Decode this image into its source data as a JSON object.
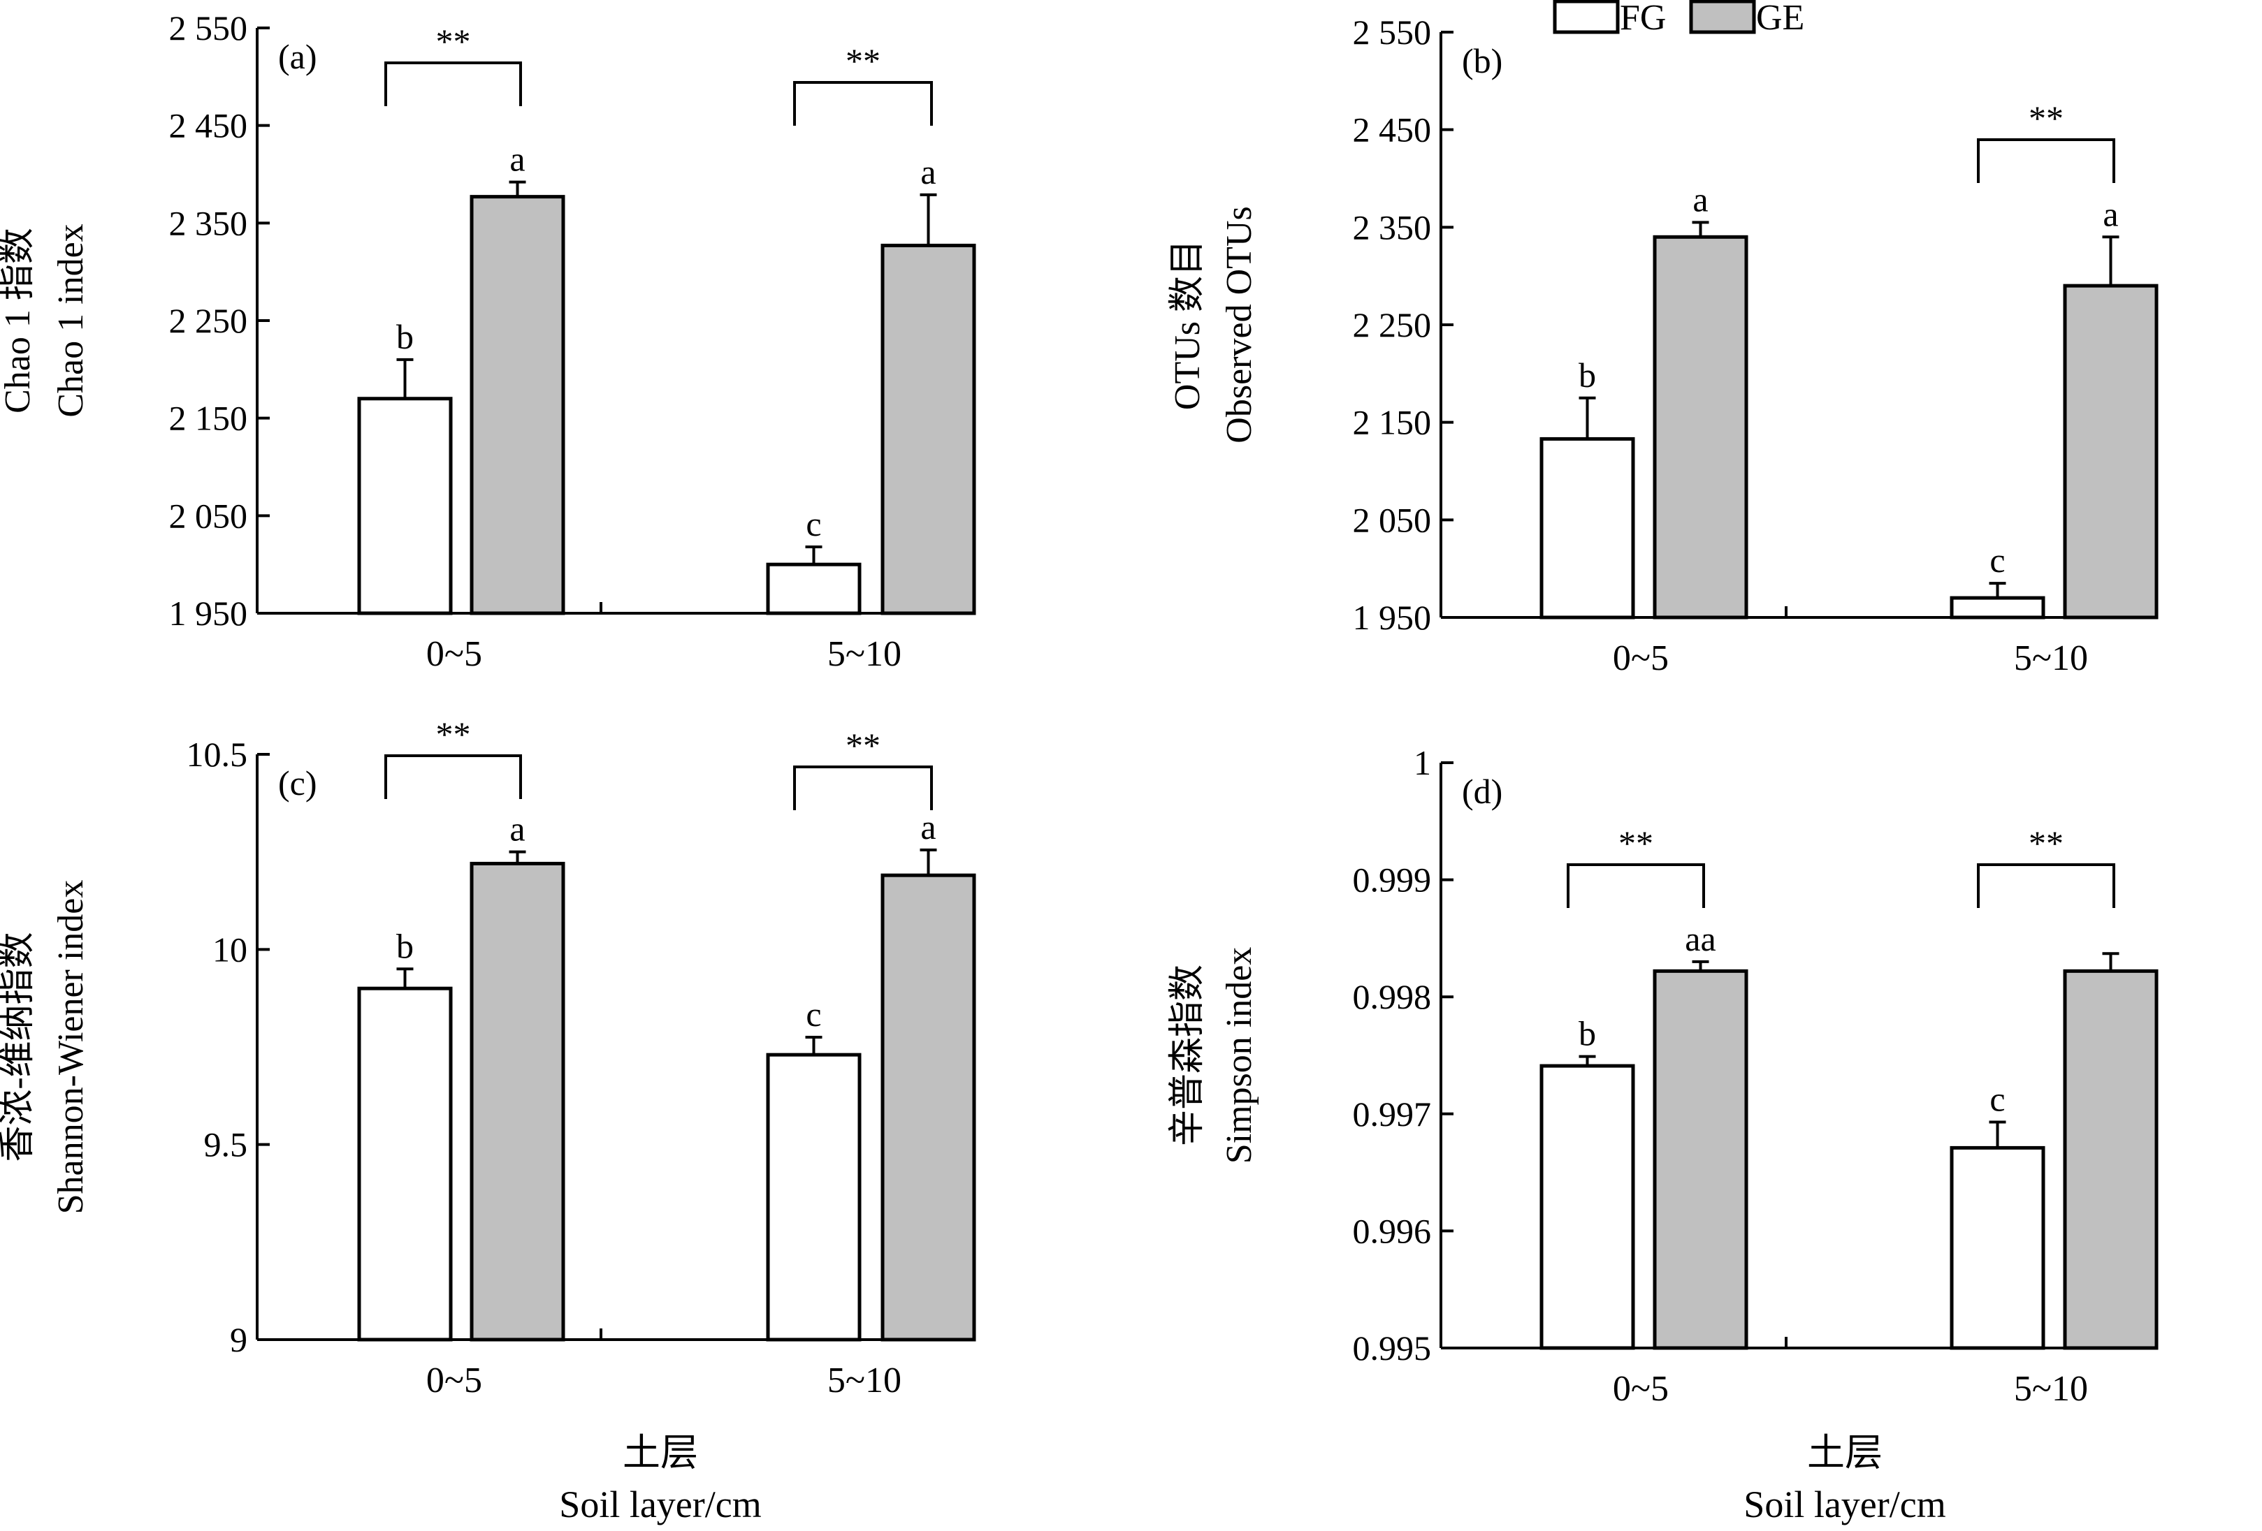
{
  "legend": {
    "items": [
      {
        "label": "FG",
        "color": "#ffffff"
      },
      {
        "label": "GE",
        "color": "#c0c0c0"
      }
    ]
  },
  "xaxis_label": {
    "zh": "土层",
    "en": "Soil layer/cm"
  },
  "chart_data": [
    {
      "type": "bar",
      "panel_label": "(a)",
      "ylabel": [
        "Chao 1 指数",
        "Chao 1 index"
      ],
      "categories": [
        "0~5",
        "5~10"
      ],
      "ylim": [
        1950,
        2550
      ],
      "yticks": [
        1950,
        2050,
        2150,
        2250,
        2350,
        2450,
        2550
      ],
      "ytick_labels": [
        "1 950",
        "2 050",
        "2 150",
        "2 250",
        "2 350",
        "2 450",
        "2 550"
      ],
      "series": [
        {
          "name": "FG",
          "values": [
            2170,
            2000
          ],
          "errors": [
            40,
            18
          ],
          "letters": [
            "b",
            "c"
          ]
        },
        {
          "name": "GE",
          "values": [
            2377,
            2327
          ],
          "errors": [
            15,
            52
          ],
          "letters": [
            "a",
            "a"
          ]
        }
      ],
      "significance": [
        "**",
        "**"
      ]
    },
    {
      "type": "bar",
      "panel_label": "(b)",
      "ylabel": [
        "OTUs 数目",
        "Observed OTUs"
      ],
      "categories": [
        "0~5",
        "5~10"
      ],
      "ylim": [
        1950,
        2550
      ],
      "yticks": [
        1950,
        2050,
        2150,
        2250,
        2350,
        2450,
        2550
      ],
      "ytick_labels": [
        "1 950",
        "2 050",
        "2 150",
        "2 250",
        "2 350",
        "2 450",
        "2 550"
      ],
      "series": [
        {
          "name": "FG",
          "values": [
            2133,
            1970
          ],
          "errors": [
            42,
            15
          ],
          "letters": [
            "b",
            "c"
          ]
        },
        {
          "name": "GE",
          "values": [
            2340,
            2290
          ],
          "errors": [
            15,
            50
          ],
          "letters": [
            "a",
            "a"
          ]
        }
      ],
      "significance": [
        "",
        "**"
      ]
    },
    {
      "type": "bar",
      "panel_label": "(c)",
      "ylabel": [
        "香浓-维纳指数",
        "Shannon-Wiener index"
      ],
      "categories": [
        "0~5",
        "5~10"
      ],
      "ylim": [
        9,
        10.5
      ],
      "yticks": [
        9,
        9.5,
        10,
        10.5
      ],
      "ytick_labels": [
        "9",
        "9.5",
        "10",
        "10.5"
      ],
      "series": [
        {
          "name": "FG",
          "values": [
            9.9,
            9.73
          ],
          "errors": [
            0.05,
            0.045
          ],
          "letters": [
            "b",
            "c"
          ]
        },
        {
          "name": "GE",
          "values": [
            10.22,
            10.19
          ],
          "errors": [
            0.03,
            0.065
          ],
          "letters": [
            "a",
            "a"
          ]
        }
      ],
      "significance": [
        "**",
        "**"
      ]
    },
    {
      "type": "bar",
      "panel_label": "(d)",
      "ylabel": [
        "辛普森指数",
        "Simpson index"
      ],
      "categories": [
        "0~5",
        "5~10"
      ],
      "ylim": [
        0.995,
        1
      ],
      "yticks": [
        0.995,
        0.996,
        0.997,
        0.998,
        0.999,
        1
      ],
      "ytick_labels": [
        "0.995",
        "0.996",
        "0.997",
        "0.998",
        "0.999",
        "1"
      ],
      "series": [
        {
          "name": "FG",
          "values": [
            0.99741,
            0.99671
          ],
          "errors": [
            8e-05,
            0.00022
          ],
          "letters": [
            "b",
            "c"
          ]
        },
        {
          "name": "GE",
          "values": [
            0.99822,
            0.99822
          ],
          "errors": [
            8e-05,
            0.00015
          ],
          "letters": [
            "aa",
            ""
          ]
        }
      ],
      "significance": [
        "**",
        "**"
      ]
    }
  ]
}
